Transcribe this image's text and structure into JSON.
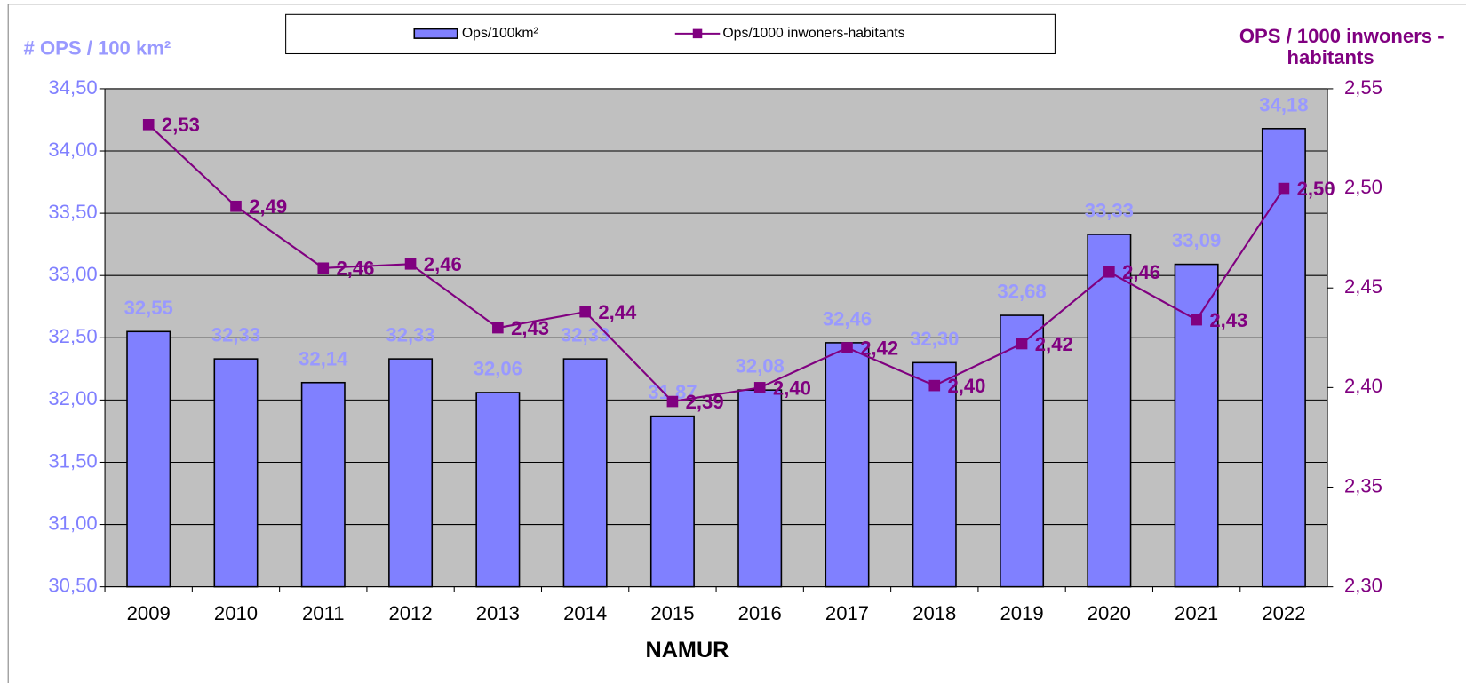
{
  "chart_data": {
    "type": "bar_line",
    "y_title": "# OPS / 100 km²",
    "y2_title": [
      "OPS / 1000 inwoners -",
      "habitants"
    ],
    "x_title": "NAMUR",
    "categories": [
      "2009",
      "2010",
      "2011",
      "2012",
      "2013",
      "2014",
      "2015",
      "2016",
      "2017",
      "2018",
      "2019",
      "2020",
      "2021",
      "2022"
    ],
    "series": [
      {
        "name": "Ops/100km²",
        "type": "bar",
        "color": "#8080ff",
        "label_color": "#9999ff",
        "values": [
          32.55,
          32.33,
          32.14,
          32.33,
          32.06,
          32.33,
          31.87,
          32.08,
          32.46,
          32.3,
          32.68,
          33.33,
          33.09,
          34.18
        ],
        "value_labels": [
          "32,55",
          "32,33",
          "32,14",
          "32,33",
          "32,06",
          "32,33",
          "31,87",
          "32,08",
          "32,46",
          "32,30",
          "32,68",
          "33,33",
          "33,09",
          "34,18"
        ]
      },
      {
        "name": "Ops/1000 inwoners-habitants",
        "type": "line",
        "axis": "y2",
        "color": "#800080",
        "values": [
          2.532,
          2.491,
          2.46,
          2.462,
          2.43,
          2.438,
          2.393,
          2.4,
          2.42,
          2.401,
          2.422,
          2.458,
          2.434,
          2.5
        ],
        "value_labels": [
          "2,53",
          "2,49",
          "2,46",
          "2,46",
          "2,43",
          "2,44",
          "2,39",
          "2,40",
          "2,42",
          "2,40",
          "2,42",
          "2,46",
          "2,43",
          "2,50"
        ]
      }
    ],
    "ylim": [
      30.5,
      34.5
    ],
    "yticks": [
      {
        "value": 30.5,
        "label": "30,50"
      },
      {
        "value": 31,
        "label": "31,00"
      },
      {
        "value": 31.5,
        "label": "31,50"
      },
      {
        "value": 32,
        "label": "32,00"
      },
      {
        "value": 32.5,
        "label": "32,50"
      },
      {
        "value": 33,
        "label": "33,00"
      },
      {
        "value": 33.5,
        "label": "33,50"
      },
      {
        "value": 34,
        "label": "34,00"
      },
      {
        "value": 34.5,
        "label": "34,50"
      }
    ],
    "y2lim": [
      2.3,
      2.55
    ],
    "y2ticks": [
      {
        "value": 2.3,
        "label": "2,30"
      },
      {
        "value": 2.35,
        "label": "2,35"
      },
      {
        "value": 2.4,
        "label": "2,40"
      },
      {
        "value": 2.45,
        "label": "2,45"
      },
      {
        "value": 2.5,
        "label": "2,50"
      },
      {
        "value": 2.55,
        "label": "2,55"
      }
    ],
    "grid": true,
    "legend": "top"
  }
}
